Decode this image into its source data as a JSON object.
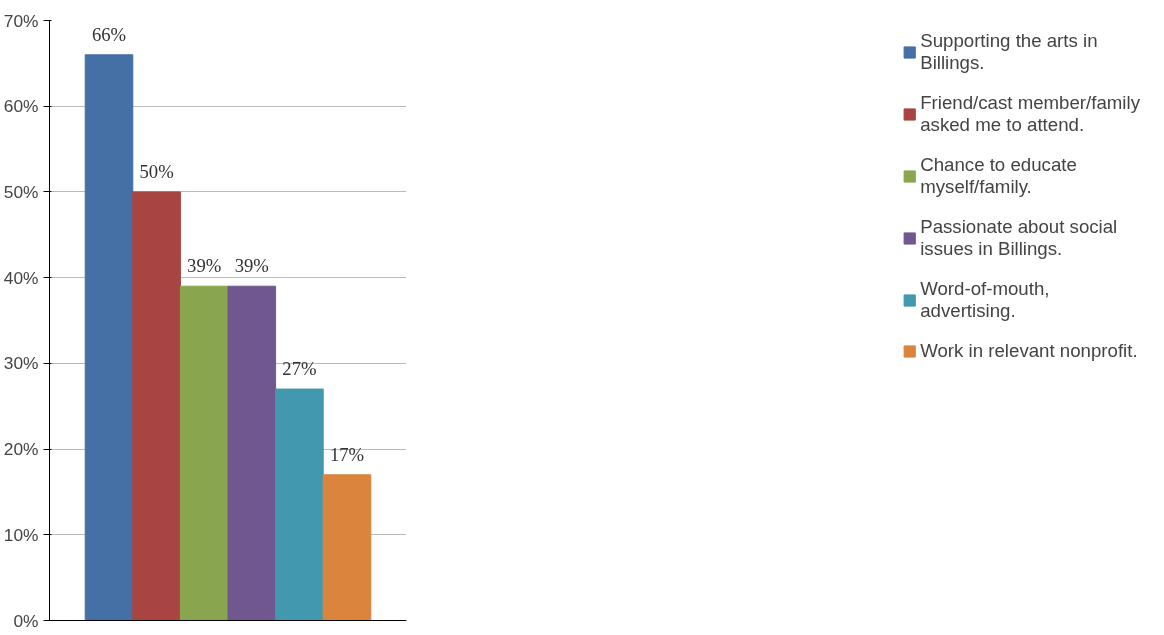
{
  "chart_data": {
    "type": "bar",
    "categories": [
      null
    ],
    "series": [
      {
        "name": "Supporting the arts in Billings.",
        "color": "#4470a5",
        "values": [
          66
        ],
        "value_labels": [
          "66%"
        ]
      },
      {
        "name": "Friend/cast member/family asked me to attend.",
        "color": "#a84442",
        "values": [
          50
        ],
        "value_labels": [
          "50%"
        ]
      },
      {
        "name": "Chance to educate myself/family.",
        "color": "#89a54e",
        "values": [
          39
        ],
        "value_labels": [
          "39%"
        ]
      },
      {
        "name": "Passionate about social issues in Billings.",
        "color": "#71578f",
        "values": [
          39
        ],
        "value_labels": [
          "39%"
        ]
      },
      {
        "name": "Word-of-mouth,  advertising.",
        "color": "#4198af",
        "values": [
          27
        ],
        "value_labels": [
          "27%"
        ]
      },
      {
        "name": "Work in relevant nonprofit.",
        "color": "#db843d",
        "values": [
          17
        ],
        "value_labels": [
          "17%"
        ]
      }
    ],
    "ylim": [
      0,
      70
    ],
    "yticks": [
      {
        "value": 0,
        "label": "0%"
      },
      {
        "value": 10,
        "label": "10%"
      },
      {
        "value": 20,
        "label": "20%"
      },
      {
        "value": 30,
        "label": "30%"
      },
      {
        "value": 40,
        "label": "40%"
      },
      {
        "value": 50,
        "label": "50%"
      },
      {
        "value": 60,
        "label": "60%"
      },
      {
        "value": 70,
        "label": "70%"
      }
    ],
    "grid": "y",
    "legend": "right"
  }
}
